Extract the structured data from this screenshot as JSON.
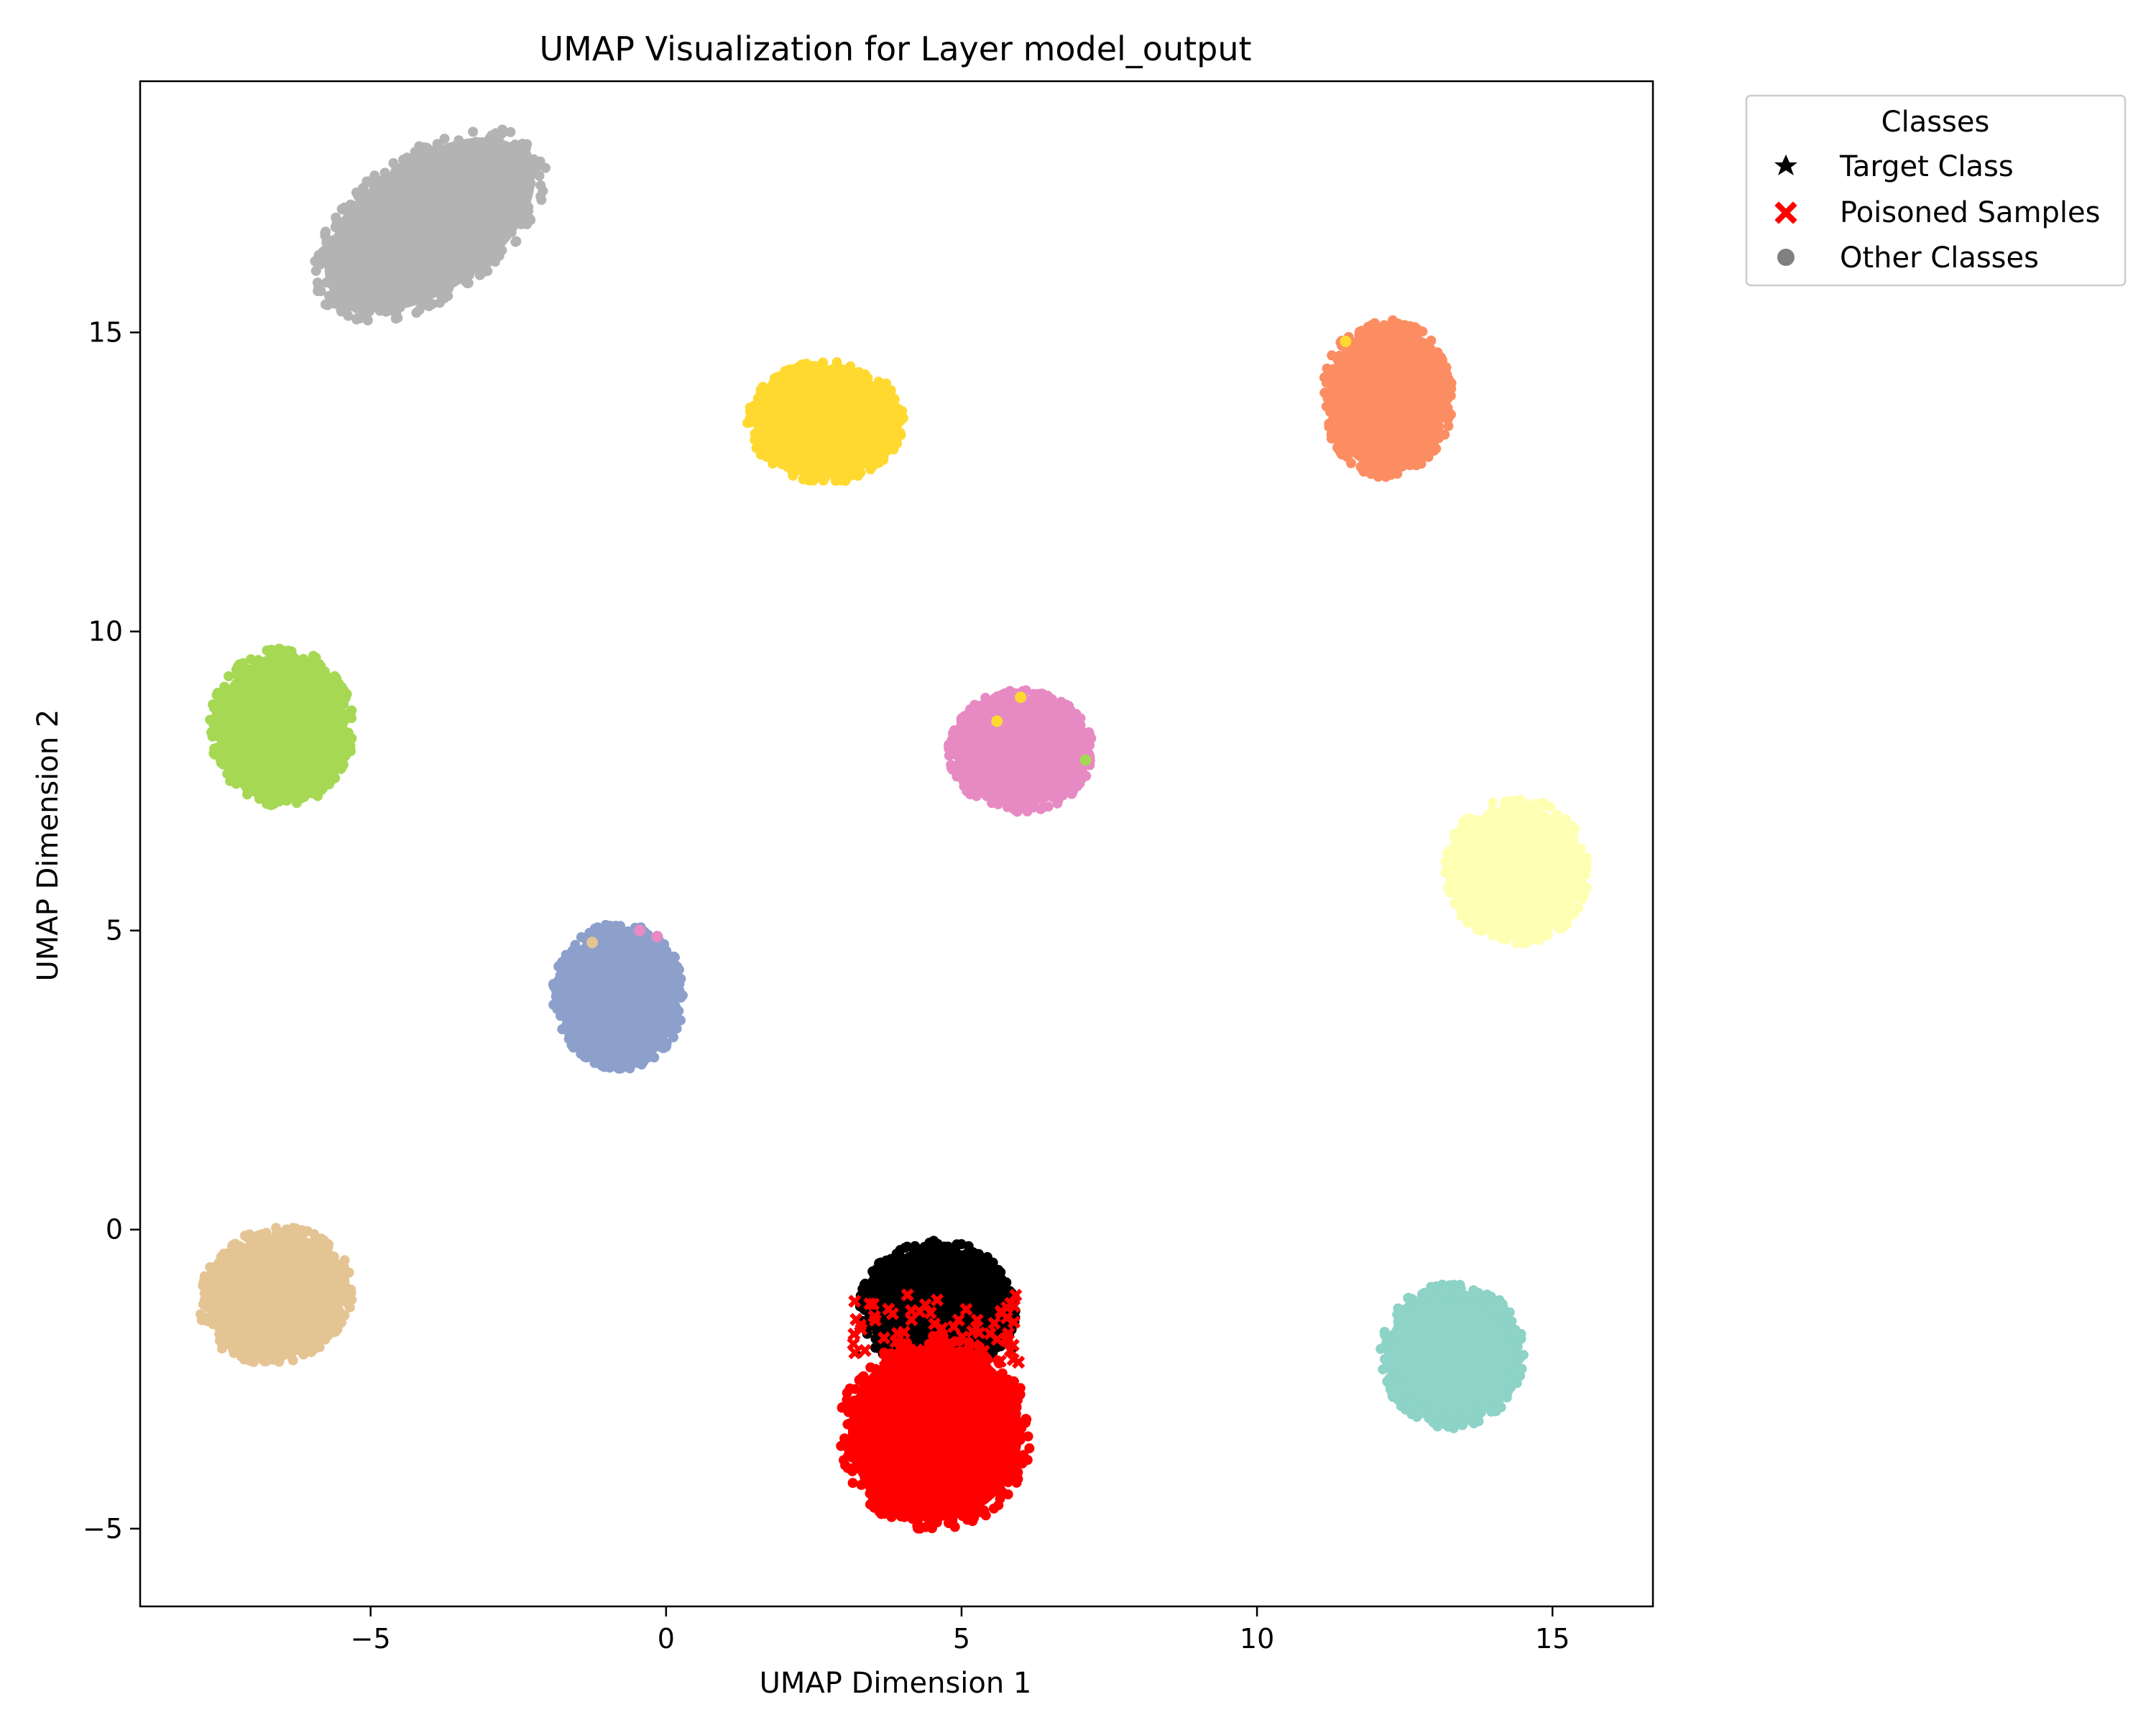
{
  "chart_data": {
    "type": "scatter",
    "title": "UMAP Visualization for Layer model_output",
    "xlabel": "UMAP Dimension 1",
    "ylabel": "UMAP Dimension 2",
    "xlim": [
      -8.9,
      16.7
    ],
    "ylim": [
      -6.3,
      19.2
    ],
    "xticks": [
      -5,
      0,
      5,
      10,
      15
    ],
    "yticks": [
      -5,
      0,
      5,
      10,
      15
    ],
    "xtick_labels": [
      "−5",
      "0",
      "5",
      "10",
      "15"
    ],
    "ytick_labels": [
      "−5",
      "0",
      "5",
      "10",
      "15"
    ],
    "grid": false,
    "legend": {
      "title": "Classes",
      "placement": "outside-top-right",
      "entries": [
        {
          "label": "Target Class",
          "marker": "star",
          "color": "#000000"
        },
        {
          "label": "Poisoned Samples",
          "marker": "x",
          "color": "#ff0000"
        },
        {
          "label": "Other Classes",
          "marker": "circle",
          "color": "#808080"
        }
      ]
    },
    "clusters": [
      {
        "group": "Other Classes",
        "color": "#b3b3b3",
        "center": [
          -4.0,
          16.8
        ],
        "rx": 2.2,
        "ry": 1.2,
        "rotate": -35
      },
      {
        "group": "Other Classes",
        "color": "#ffd92f",
        "center": [
          2.7,
          13.5
        ],
        "rx": 1.3,
        "ry": 1.0,
        "rotate": 0
      },
      {
        "group": "Other Classes",
        "color": "#fc8d62",
        "center": [
          12.2,
          13.9
        ],
        "rx": 1.1,
        "ry": 1.3,
        "rotate": 0
      },
      {
        "group": "Other Classes",
        "color": "#a6d854",
        "center": [
          -6.5,
          8.4
        ],
        "rx": 1.2,
        "ry": 1.3,
        "rotate": 0
      },
      {
        "group": "Other Classes",
        "color": "#e78ac3",
        "center": [
          6.0,
          8.0
        ],
        "rx": 1.2,
        "ry": 1.0,
        "rotate": 0
      },
      {
        "group": "Other Classes",
        "color": "#ffffb3",
        "center": [
          14.4,
          6.0
        ],
        "rx": 1.2,
        "ry": 1.2,
        "rotate": -20
      },
      {
        "group": "Other Classes",
        "color": "#8da0cb",
        "center": [
          -0.8,
          3.9
        ],
        "rx": 1.1,
        "ry": 1.2,
        "rotate": 0
      },
      {
        "group": "Other Classes",
        "color": "#e5c494",
        "center": [
          -6.6,
          -1.1
        ],
        "rx": 1.3,
        "ry": 1.1,
        "rotate": -20
      },
      {
        "group": "Other Classes",
        "color": "#8dd3c7",
        "center": [
          13.3,
          -2.1
        ],
        "rx": 1.2,
        "ry": 1.2,
        "rotate": 0
      },
      {
        "group": "Target Class",
        "color": "#000000",
        "center": [
          4.6,
          -1.3
        ],
        "rx": 1.3,
        "ry": 1.1,
        "rotate": 0
      },
      {
        "group": "Poisoned Samples",
        "color": "#ff0000",
        "center": [
          4.55,
          -3.4
        ],
        "rx": 1.6,
        "ry": 1.6,
        "rotate": 0
      }
    ],
    "outliers": [
      {
        "x": 11.5,
        "y": 14.85,
        "color": "#ffd92f"
      },
      {
        "x": 5.6,
        "y": 8.5,
        "color": "#ffd92f"
      },
      {
        "x": 6.0,
        "y": 8.9,
        "color": "#ffd92f"
      },
      {
        "x": 7.1,
        "y": 7.85,
        "color": "#a6d854"
      },
      {
        "x": -1.25,
        "y": 4.8,
        "color": "#e5c494"
      },
      {
        "x": -0.45,
        "y": 5.0,
        "color": "#e78ac3"
      },
      {
        "x": -0.15,
        "y": 4.9,
        "color": "#e78ac3"
      }
    ]
  }
}
